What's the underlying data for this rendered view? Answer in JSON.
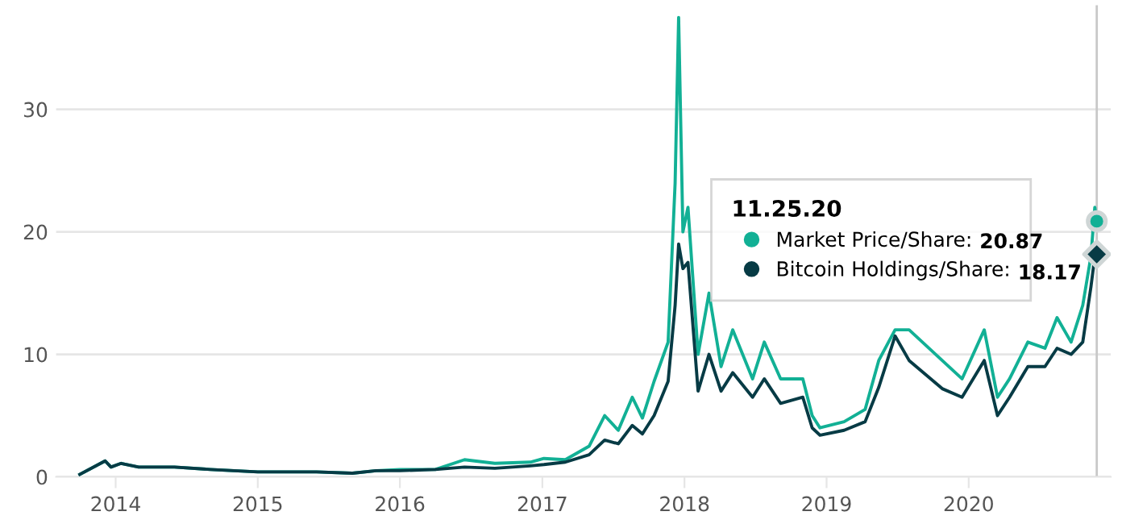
{
  "chart_data": {
    "type": "line",
    "legend_title": "11.25.20",
    "legend": "right",
    "grid": "y",
    "line_style": "solid",
    "marker": "none",
    "xlim": [
      "2013-08-01",
      "2020-12-31"
    ],
    "ylim": [
      0,
      38.5
    ],
    "yticks": [
      0,
      10,
      20,
      30
    ],
    "xticks": [
      {
        "value": "2014-01-01",
        "label": "2014"
      },
      {
        "value": "2015-01-01",
        "label": "2015"
      },
      {
        "value": "2016-01-01",
        "label": "2016"
      },
      {
        "value": "2017-01-01",
        "label": "2017"
      },
      {
        "value": "2018-01-01",
        "label": "2018"
      },
      {
        "value": "2019-01-01",
        "label": "2019"
      },
      {
        "value": "2020-01-01",
        "label": "2020"
      }
    ],
    "x": [
      "2013-10-01",
      "2013-12-05",
      "2013-12-20",
      "2014-01-15",
      "2014-03-01",
      "2014-06-01",
      "2014-09-01",
      "2015-01-01",
      "2015-06-01",
      "2015-09-01",
      "2015-11-01",
      "2016-01-01",
      "2016-04-01",
      "2016-06-15",
      "2016-09-01",
      "2016-12-01",
      "2017-01-05",
      "2017-03-01",
      "2017-05-01",
      "2017-06-10",
      "2017-07-15",
      "2017-08-20",
      "2017-09-15",
      "2017-10-15",
      "2017-11-20",
      "2017-12-08",
      "2017-12-17",
      "2017-12-28",
      "2018-01-10",
      "2018-02-05",
      "2018-03-05",
      "2018-04-05",
      "2018-05-05",
      "2018-06-25",
      "2018-07-25",
      "2018-09-05",
      "2018-11-01",
      "2018-11-25",
      "2018-12-15",
      "2019-02-15",
      "2019-04-10",
      "2019-05-15",
      "2019-06-26",
      "2019-08-01",
      "2019-10-25",
      "2019-12-15",
      "2020-02-10",
      "2020-03-15",
      "2020-04-15",
      "2020-06-01",
      "2020-07-15",
      "2020-08-15",
      "2020-09-20",
      "2020-10-20",
      "2020-11-10",
      "2020-11-20",
      "2020-11-25"
    ],
    "series": [
      {
        "name": "Market Price/Share:",
        "color": "#12b095",
        "values": [
          0.2,
          1.3,
          0.8,
          1.1,
          0.8,
          0.8,
          0.6,
          0.4,
          0.4,
          0.3,
          0.5,
          0.6,
          0.6,
          1.4,
          1.1,
          1.2,
          1.5,
          1.4,
          2.5,
          5.0,
          3.8,
          6.5,
          4.8,
          7.8,
          11,
          24,
          37.5,
          20,
          22,
          10,
          15,
          9,
          12,
          8,
          11,
          8,
          8,
          5,
          4,
          4.5,
          5.5,
          9.5,
          12,
          12,
          9.5,
          8,
          12,
          6.5,
          8,
          11,
          10.5,
          13,
          11,
          14,
          18,
          22,
          20.87
        ]
      },
      {
        "name": "Bitcoin Holdings/Share:",
        "color": "#073b45",
        "values": [
          0.2,
          1.3,
          0.8,
          1.1,
          0.8,
          0.8,
          0.6,
          0.4,
          0.4,
          0.3,
          0.5,
          0.5,
          0.6,
          0.8,
          0.7,
          0.9,
          1.0,
          1.2,
          1.8,
          3.0,
          2.7,
          4.2,
          3.5,
          5.0,
          7.8,
          14,
          19,
          17,
          17.5,
          7,
          10,
          7,
          8.5,
          6.5,
          8,
          6,
          6.5,
          4,
          3.4,
          3.8,
          4.5,
          7.3,
          11.5,
          9.5,
          7.2,
          6.5,
          9.5,
          5.0,
          6.5,
          9,
          9.0,
          10.5,
          10,
          11,
          15.5,
          18,
          18.17
        ]
      },
      {
        "type": "scatter",
        "marker": "circle",
        "color": "#12b095",
        "x": [
          "2020-11-25"
        ],
        "values": [
          20.87
        ]
      },
      {
        "type": "scatter",
        "marker": "diamond",
        "color": "#073b45",
        "x": [
          "2020-11-25"
        ],
        "values": [
          18.17
        ]
      }
    ],
    "annotations": [
      "20.87",
      "18.17"
    ],
    "ref_lines": [
      {
        "axis": "x",
        "value": "2020-11-25",
        "color": "#c8c8c8"
      }
    ]
  }
}
